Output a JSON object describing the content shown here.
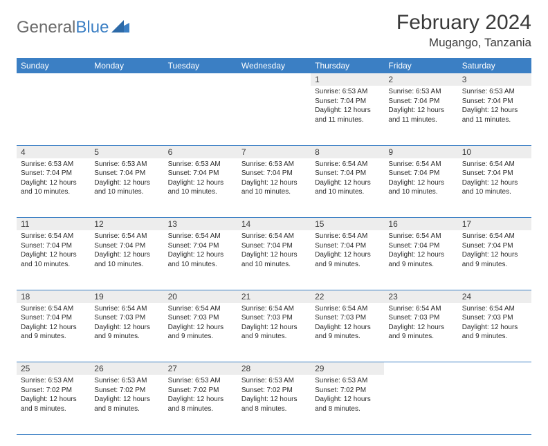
{
  "logo": {
    "text_gray": "General",
    "text_blue": "Blue"
  },
  "title": "February 2024",
  "location": "Mugango, Tanzania",
  "colors": {
    "header_bg": "#3b7fc4",
    "header_fg": "#ffffff",
    "daynum_bg": "#ededed",
    "border": "#3b7fc4",
    "text": "#2a2a2a",
    "logo_gray": "#6b6b6b",
    "logo_blue": "#3b7fc4"
  },
  "weekdays": [
    "Sunday",
    "Monday",
    "Tuesday",
    "Wednesday",
    "Thursday",
    "Friday",
    "Saturday"
  ],
  "weeks": [
    [
      null,
      null,
      null,
      null,
      {
        "n": "1",
        "sunrise": "6:53 AM",
        "sunset": "7:04 PM",
        "daylight": "12 hours and 11 minutes."
      },
      {
        "n": "2",
        "sunrise": "6:53 AM",
        "sunset": "7:04 PM",
        "daylight": "12 hours and 11 minutes."
      },
      {
        "n": "3",
        "sunrise": "6:53 AM",
        "sunset": "7:04 PM",
        "daylight": "12 hours and 11 minutes."
      }
    ],
    [
      {
        "n": "4",
        "sunrise": "6:53 AM",
        "sunset": "7:04 PM",
        "daylight": "12 hours and 10 minutes."
      },
      {
        "n": "5",
        "sunrise": "6:53 AM",
        "sunset": "7:04 PM",
        "daylight": "12 hours and 10 minutes."
      },
      {
        "n": "6",
        "sunrise": "6:53 AM",
        "sunset": "7:04 PM",
        "daylight": "12 hours and 10 minutes."
      },
      {
        "n": "7",
        "sunrise": "6:53 AM",
        "sunset": "7:04 PM",
        "daylight": "12 hours and 10 minutes."
      },
      {
        "n": "8",
        "sunrise": "6:54 AM",
        "sunset": "7:04 PM",
        "daylight": "12 hours and 10 minutes."
      },
      {
        "n": "9",
        "sunrise": "6:54 AM",
        "sunset": "7:04 PM",
        "daylight": "12 hours and 10 minutes."
      },
      {
        "n": "10",
        "sunrise": "6:54 AM",
        "sunset": "7:04 PM",
        "daylight": "12 hours and 10 minutes."
      }
    ],
    [
      {
        "n": "11",
        "sunrise": "6:54 AM",
        "sunset": "7:04 PM",
        "daylight": "12 hours and 10 minutes."
      },
      {
        "n": "12",
        "sunrise": "6:54 AM",
        "sunset": "7:04 PM",
        "daylight": "12 hours and 10 minutes."
      },
      {
        "n": "13",
        "sunrise": "6:54 AM",
        "sunset": "7:04 PM",
        "daylight": "12 hours and 10 minutes."
      },
      {
        "n": "14",
        "sunrise": "6:54 AM",
        "sunset": "7:04 PM",
        "daylight": "12 hours and 10 minutes."
      },
      {
        "n": "15",
        "sunrise": "6:54 AM",
        "sunset": "7:04 PM",
        "daylight": "12 hours and 9 minutes."
      },
      {
        "n": "16",
        "sunrise": "6:54 AM",
        "sunset": "7:04 PM",
        "daylight": "12 hours and 9 minutes."
      },
      {
        "n": "17",
        "sunrise": "6:54 AM",
        "sunset": "7:04 PM",
        "daylight": "12 hours and 9 minutes."
      }
    ],
    [
      {
        "n": "18",
        "sunrise": "6:54 AM",
        "sunset": "7:04 PM",
        "daylight": "12 hours and 9 minutes."
      },
      {
        "n": "19",
        "sunrise": "6:54 AM",
        "sunset": "7:03 PM",
        "daylight": "12 hours and 9 minutes."
      },
      {
        "n": "20",
        "sunrise": "6:54 AM",
        "sunset": "7:03 PM",
        "daylight": "12 hours and 9 minutes."
      },
      {
        "n": "21",
        "sunrise": "6:54 AM",
        "sunset": "7:03 PM",
        "daylight": "12 hours and 9 minutes."
      },
      {
        "n": "22",
        "sunrise": "6:54 AM",
        "sunset": "7:03 PM",
        "daylight": "12 hours and 9 minutes."
      },
      {
        "n": "23",
        "sunrise": "6:54 AM",
        "sunset": "7:03 PM",
        "daylight": "12 hours and 9 minutes."
      },
      {
        "n": "24",
        "sunrise": "6:54 AM",
        "sunset": "7:03 PM",
        "daylight": "12 hours and 9 minutes."
      }
    ],
    [
      {
        "n": "25",
        "sunrise": "6:53 AM",
        "sunset": "7:02 PM",
        "daylight": "12 hours and 8 minutes."
      },
      {
        "n": "26",
        "sunrise": "6:53 AM",
        "sunset": "7:02 PM",
        "daylight": "12 hours and 8 minutes."
      },
      {
        "n": "27",
        "sunrise": "6:53 AM",
        "sunset": "7:02 PM",
        "daylight": "12 hours and 8 minutes."
      },
      {
        "n": "28",
        "sunrise": "6:53 AM",
        "sunset": "7:02 PM",
        "daylight": "12 hours and 8 minutes."
      },
      {
        "n": "29",
        "sunrise": "6:53 AM",
        "sunset": "7:02 PM",
        "daylight": "12 hours and 8 minutes."
      },
      null,
      null
    ]
  ],
  "labels": {
    "sunrise": "Sunrise:",
    "sunset": "Sunset:",
    "daylight": "Daylight:"
  }
}
